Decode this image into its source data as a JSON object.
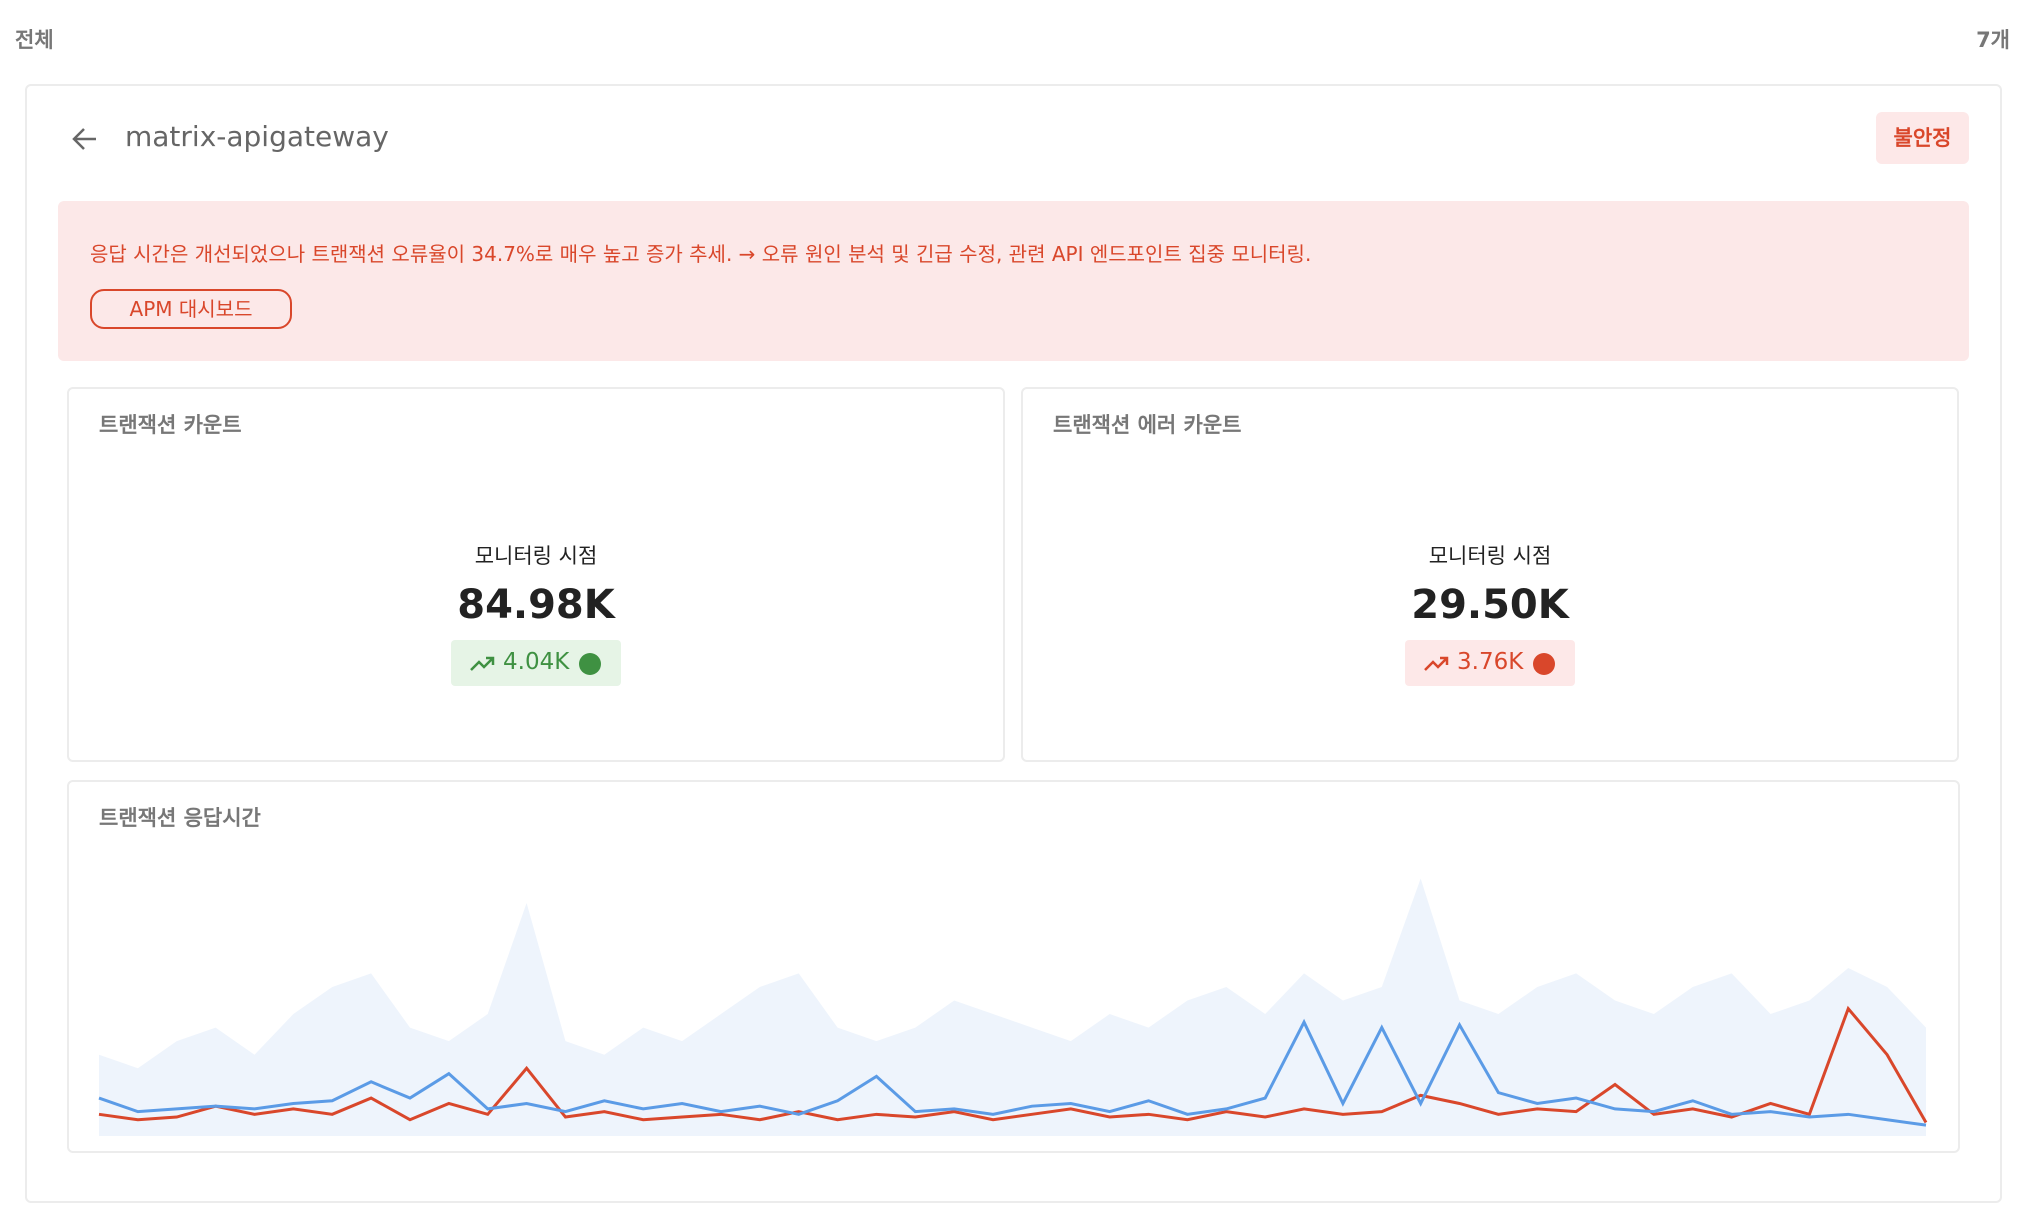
{
  "header": {
    "label": "전체",
    "count": "7개"
  },
  "service": {
    "title": "matrix-apigateway",
    "status": "불안정"
  },
  "alert": {
    "message": "응답 시간은 개선되었으나 트랜잭션 오류율이 34.7%로 매우 높고 증가 추세. → 오류 원인 분석 및 긴급 수정, 관련 API 엔드포인트 집중 모니터링.",
    "button": "APM 대시보드"
  },
  "metrics": [
    {
      "title": "트랜잭션 카운트",
      "caption": "모니터링 시점",
      "value": "84.98K",
      "delta": "4.04K",
      "tone": "good"
    },
    {
      "title": "트랜잭션 에러 카운트",
      "caption": "모니터링 시점",
      "value": "29.50K",
      "delta": "3.76K",
      "tone": "bad"
    }
  ],
  "chart_data": {
    "type": "line",
    "title": "트랜잭션 응답시간",
    "ylim": [
      0,
      100
    ],
    "series": [
      {
        "color": "#eef4fc",
        "area": true,
        "values": [
          30,
          25,
          35,
          40,
          30,
          45,
          55,
          60,
          40,
          35,
          45,
          86,
          35,
          30,
          40,
          35,
          45,
          55,
          60,
          40,
          35,
          40,
          50,
          45,
          40,
          35,
          45,
          40,
          50,
          55,
          45,
          60,
          50,
          55,
          95,
          50,
          45,
          55,
          60,
          50,
          45,
          55,
          60,
          45,
          50,
          62,
          55,
          40
        ]
      },
      {
        "color": "#d9472b",
        "values": [
          8,
          6,
          7,
          11,
          8,
          10,
          8,
          14,
          6,
          12,
          8,
          25,
          7,
          9,
          6,
          7,
          8,
          6,
          9,
          6,
          8,
          7,
          9,
          6,
          8,
          10,
          7,
          8,
          6,
          9,
          7,
          10,
          8,
          9,
          15,
          12,
          8,
          10,
          9,
          19,
          8,
          10,
          7,
          12,
          8,
          47,
          30,
          5
        ]
      },
      {
        "color": "#5b9be6",
        "values": [
          14,
          9,
          10,
          11,
          10,
          12,
          13,
          20,
          14,
          23,
          10,
          12,
          9,
          13,
          10,
          12,
          9,
          11,
          8,
          13,
          22,
          9,
          10,
          8,
          11,
          12,
          9,
          13,
          8,
          10,
          14,
          42,
          12,
          40,
          12,
          41,
          16,
          12,
          14,
          10,
          9,
          13,
          8,
          9,
          7,
          8,
          6,
          4
        ]
      }
    ]
  }
}
